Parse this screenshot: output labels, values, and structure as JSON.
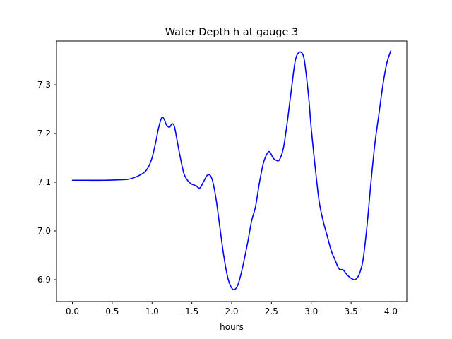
{
  "chart_data": {
    "type": "line",
    "title": "Water Depth h at gauge 3",
    "xlabel": "hours",
    "ylabel": "",
    "xlim": [
      -0.2,
      4.2
    ],
    "ylim": [
      6.855,
      7.39
    ],
    "xticks": [
      0.0,
      0.5,
      1.0,
      1.5,
      2.0,
      2.5,
      3.0,
      3.5,
      4.0
    ],
    "xtick_labels": [
      "0.0",
      "0.5",
      "1.0",
      "1.5",
      "2.0",
      "2.5",
      "3.0",
      "3.5",
      "4.0"
    ],
    "yticks": [
      6.9,
      7.0,
      7.1,
      7.2,
      7.3
    ],
    "ytick_labels": [
      "6.9",
      "7.0",
      "7.1",
      "7.2",
      "7.3"
    ],
    "grid": false,
    "line_color": "#0000ff",
    "series": [
      {
        "x": [
          0.0,
          0.2,
          0.4,
          0.6,
          0.7,
          0.8,
          0.9,
          0.95,
          1.0,
          1.05,
          1.08,
          1.12,
          1.15,
          1.18,
          1.22,
          1.25,
          1.28,
          1.31,
          1.35,
          1.4,
          1.45,
          1.5,
          1.55,
          1.6,
          1.65,
          1.7,
          1.75,
          1.8,
          1.85,
          1.9,
          1.95,
          2.0,
          2.04,
          2.08,
          2.13,
          2.2,
          2.25,
          2.3,
          2.35,
          2.4,
          2.45,
          2.48,
          2.52,
          2.56,
          2.6,
          2.65,
          2.7,
          2.75,
          2.8,
          2.85,
          2.9,
          2.93,
          2.97,
          3.0,
          3.05,
          3.1,
          3.15,
          3.2,
          3.25,
          3.3,
          3.35,
          3.4,
          3.45,
          3.5,
          3.55,
          3.6,
          3.65,
          3.7,
          3.75,
          3.8,
          3.85,
          3.9,
          3.95,
          4.0
        ],
        "y": [
          7.104,
          7.104,
          7.104,
          7.105,
          7.106,
          7.111,
          7.12,
          7.13,
          7.15,
          7.185,
          7.21,
          7.232,
          7.23,
          7.218,
          7.213,
          7.22,
          7.215,
          7.19,
          7.155,
          7.118,
          7.103,
          7.096,
          7.093,
          7.088,
          7.102,
          7.115,
          7.108,
          7.07,
          7.01,
          6.95,
          6.905,
          6.883,
          6.88,
          6.89,
          6.92,
          6.975,
          7.02,
          7.05,
          7.1,
          7.14,
          7.16,
          7.162,
          7.15,
          7.145,
          7.146,
          7.17,
          7.225,
          7.29,
          7.35,
          7.367,
          7.36,
          7.33,
          7.27,
          7.21,
          7.13,
          7.06,
          7.02,
          6.99,
          6.96,
          6.94,
          6.922,
          6.92,
          6.91,
          6.903,
          6.9,
          6.91,
          6.94,
          7.01,
          7.1,
          7.18,
          7.24,
          7.3,
          7.345,
          7.37
        ]
      }
    ]
  }
}
